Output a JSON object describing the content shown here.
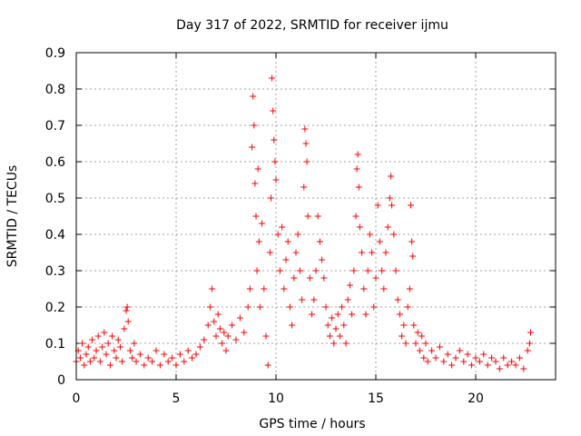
{
  "chart_data": {
    "type": "scatter",
    "title": "Day 317 of 2022, SRMTID for receiver ijmu",
    "xlabel": "GPS time / hours",
    "ylabel": "SRMTID / TECUs",
    "xlim": [
      0,
      24
    ],
    "ylim": [
      0,
      0.9
    ],
    "xticks": [
      0,
      5,
      10,
      15,
      20
    ],
    "yticks": [
      0,
      0.1,
      0.2,
      0.3,
      0.4,
      0.5,
      0.6,
      0.7,
      0.8,
      0.9
    ],
    "xtick_labels": [
      "0",
      "5",
      "10",
      "15",
      "20"
    ],
    "ytick_labels": [
      "0",
      "0.1",
      "0.2",
      "0.3",
      "0.4",
      "0.5",
      "0.6",
      "0.7",
      "0.8",
      "0.9"
    ],
    "grid": true,
    "marker": "+",
    "color": "#ff0000",
    "series": [
      {
        "name": "SRMTID",
        "points": [
          [
            0.0,
            0.05
          ],
          [
            0.1,
            0.08
          ],
          [
            0.2,
            0.06
          ],
          [
            0.3,
            0.1
          ],
          [
            0.4,
            0.04
          ],
          [
            0.5,
            0.07
          ],
          [
            0.6,
            0.09
          ],
          [
            0.7,
            0.05
          ],
          [
            0.8,
            0.11
          ],
          [
            0.9,
            0.06
          ],
          [
            1.0,
            0.08
          ],
          [
            1.1,
            0.12
          ],
          [
            1.2,
            0.05
          ],
          [
            1.3,
            0.09
          ],
          [
            1.4,
            0.13
          ],
          [
            1.5,
            0.07
          ],
          [
            1.6,
            0.1
          ],
          [
            1.7,
            0.04
          ],
          [
            1.8,
            0.12
          ],
          [
            1.9,
            0.08
          ],
          [
            2.0,
            0.06
          ],
          [
            2.1,
            0.11
          ],
          [
            2.2,
            0.09
          ],
          [
            2.3,
            0.05
          ],
          [
            2.4,
            0.14
          ],
          [
            2.5,
            0.19
          ],
          [
            2.55,
            0.2
          ],
          [
            2.6,
            0.16
          ],
          [
            2.7,
            0.08
          ],
          [
            2.8,
            0.06
          ],
          [
            2.9,
            0.1
          ],
          [
            3.0,
            0.05
          ],
          [
            3.2,
            0.07
          ],
          [
            3.4,
            0.04
          ],
          [
            3.6,
            0.06
          ],
          [
            3.8,
            0.05
          ],
          [
            4.0,
            0.08
          ],
          [
            4.2,
            0.04
          ],
          [
            4.4,
            0.07
          ],
          [
            4.6,
            0.05
          ],
          [
            4.8,
            0.06
          ],
          [
            5.0,
            0.04
          ],
          [
            5.2,
            0.07
          ],
          [
            5.4,
            0.05
          ],
          [
            5.6,
            0.08
          ],
          [
            5.8,
            0.06
          ],
          [
            6.0,
            0.07
          ],
          [
            6.2,
            0.09
          ],
          [
            6.4,
            0.11
          ],
          [
            6.6,
            0.15
          ],
          [
            6.7,
            0.2
          ],
          [
            6.8,
            0.25
          ],
          [
            6.9,
            0.16
          ],
          [
            7.0,
            0.12
          ],
          [
            7.1,
            0.18
          ],
          [
            7.2,
            0.14
          ],
          [
            7.3,
            0.1
          ],
          [
            7.4,
            0.13
          ],
          [
            7.5,
            0.08
          ],
          [
            7.6,
            0.12
          ],
          [
            7.8,
            0.15
          ],
          [
            8.0,
            0.11
          ],
          [
            8.2,
            0.17
          ],
          [
            8.4,
            0.13
          ],
          [
            8.6,
            0.2
          ],
          [
            8.7,
            0.25
          ],
          [
            8.8,
            0.64
          ],
          [
            8.85,
            0.78
          ],
          [
            8.9,
            0.7
          ],
          [
            8.95,
            0.54
          ],
          [
            9.0,
            0.45
          ],
          [
            9.05,
            0.3
          ],
          [
            9.1,
            0.58
          ],
          [
            9.15,
            0.38
          ],
          [
            9.2,
            0.2
          ],
          [
            9.3,
            0.43
          ],
          [
            9.4,
            0.25
          ],
          [
            9.5,
            0.12
          ],
          [
            9.6,
            0.04
          ],
          [
            9.7,
            0.35
          ],
          [
            9.75,
            0.5
          ],
          [
            9.8,
            0.83
          ],
          [
            9.85,
            0.74
          ],
          [
            9.9,
            0.66
          ],
          [
            9.95,
            0.6
          ],
          [
            10.0,
            0.55
          ],
          [
            10.1,
            0.4
          ],
          [
            10.2,
            0.3
          ],
          [
            10.3,
            0.42
          ],
          [
            10.4,
            0.25
          ],
          [
            10.5,
            0.33
          ],
          [
            10.6,
            0.38
          ],
          [
            10.7,
            0.2
          ],
          [
            10.8,
            0.15
          ],
          [
            10.9,
            0.28
          ],
          [
            11.0,
            0.35
          ],
          [
            11.1,
            0.4
          ],
          [
            11.2,
            0.3
          ],
          [
            11.3,
            0.22
          ],
          [
            11.4,
            0.53
          ],
          [
            11.45,
            0.69
          ],
          [
            11.5,
            0.65
          ],
          [
            11.55,
            0.6
          ],
          [
            11.6,
            0.45
          ],
          [
            11.7,
            0.28
          ],
          [
            11.8,
            0.18
          ],
          [
            11.9,
            0.22
          ],
          [
            12.0,
            0.3
          ],
          [
            12.1,
            0.45
          ],
          [
            12.2,
            0.38
          ],
          [
            12.3,
            0.33
          ],
          [
            12.4,
            0.28
          ],
          [
            12.5,
            0.2
          ],
          [
            12.6,
            0.15
          ],
          [
            12.7,
            0.12
          ],
          [
            12.8,
            0.17
          ],
          [
            12.9,
            0.1
          ],
          [
            13.0,
            0.14
          ],
          [
            13.1,
            0.18
          ],
          [
            13.2,
            0.12
          ],
          [
            13.3,
            0.2
          ],
          [
            13.4,
            0.15
          ],
          [
            13.5,
            0.1
          ],
          [
            13.6,
            0.22
          ],
          [
            13.7,
            0.26
          ],
          [
            13.8,
            0.18
          ],
          [
            13.9,
            0.3
          ],
          [
            14.0,
            0.45
          ],
          [
            14.05,
            0.58
          ],
          [
            14.1,
            0.62
          ],
          [
            14.15,
            0.53
          ],
          [
            14.2,
            0.42
          ],
          [
            14.3,
            0.35
          ],
          [
            14.4,
            0.25
          ],
          [
            14.5,
            0.18
          ],
          [
            14.6,
            0.3
          ],
          [
            14.7,
            0.4
          ],
          [
            14.8,
            0.35
          ],
          [
            14.9,
            0.2
          ],
          [
            15.0,
            0.28
          ],
          [
            15.1,
            0.48
          ],
          [
            15.2,
            0.38
          ],
          [
            15.3,
            0.3
          ],
          [
            15.4,
            0.25
          ],
          [
            15.5,
            0.35
          ],
          [
            15.6,
            0.42
          ],
          [
            15.7,
            0.5
          ],
          [
            15.75,
            0.56
          ],
          [
            15.8,
            0.48
          ],
          [
            15.9,
            0.4
          ],
          [
            16.0,
            0.3
          ],
          [
            16.1,
            0.22
          ],
          [
            16.2,
            0.18
          ],
          [
            16.3,
            0.12
          ],
          [
            16.4,
            0.15
          ],
          [
            16.5,
            0.1
          ],
          [
            16.6,
            0.2
          ],
          [
            16.7,
            0.25
          ],
          [
            16.75,
            0.48
          ],
          [
            16.8,
            0.38
          ],
          [
            16.85,
            0.34
          ],
          [
            16.9,
            0.15
          ],
          [
            17.0,
            0.1
          ],
          [
            17.1,
            0.13
          ],
          [
            17.2,
            0.08
          ],
          [
            17.3,
            0.12
          ],
          [
            17.4,
            0.06
          ],
          [
            17.5,
            0.1
          ],
          [
            17.6,
            0.05
          ],
          [
            17.8,
            0.08
          ],
          [
            18.0,
            0.06
          ],
          [
            18.2,
            0.09
          ],
          [
            18.4,
            0.05
          ],
          [
            18.6,
            0.07
          ],
          [
            18.8,
            0.04
          ],
          [
            19.0,
            0.06
          ],
          [
            19.2,
            0.08
          ],
          [
            19.4,
            0.05
          ],
          [
            19.6,
            0.07
          ],
          [
            19.8,
            0.04
          ],
          [
            20.0,
            0.06
          ],
          [
            20.2,
            0.05
          ],
          [
            20.4,
            0.07
          ],
          [
            20.6,
            0.04
          ],
          [
            20.8,
            0.06
          ],
          [
            21.0,
            0.05
          ],
          [
            21.2,
            0.03
          ],
          [
            21.4,
            0.06
          ],
          [
            21.6,
            0.04
          ],
          [
            21.8,
            0.05
          ],
          [
            22.0,
            0.04
          ],
          [
            22.2,
            0.06
          ],
          [
            22.4,
            0.03
          ],
          [
            22.6,
            0.08
          ],
          [
            22.7,
            0.1
          ],
          [
            22.75,
            0.13
          ]
        ]
      }
    ]
  }
}
